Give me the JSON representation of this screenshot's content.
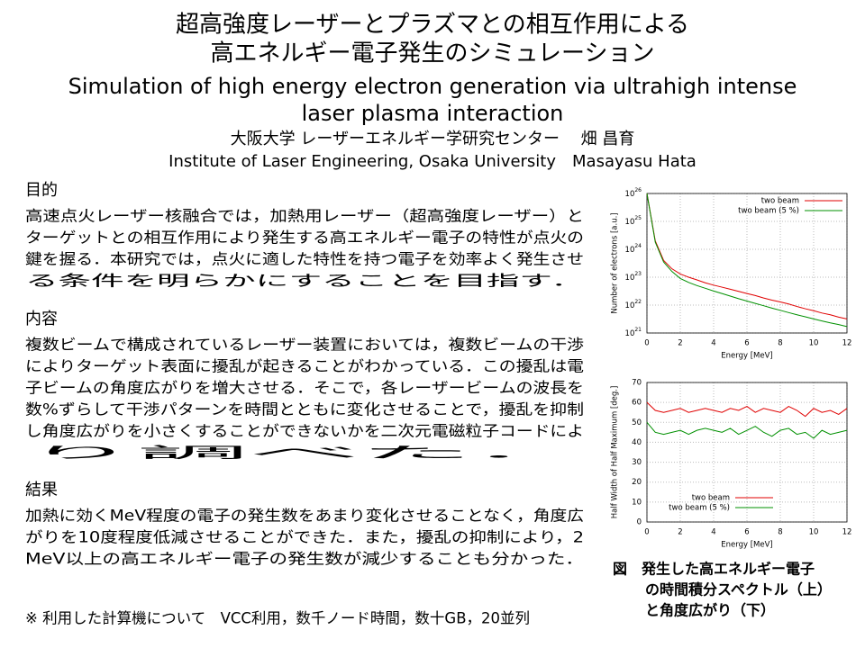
{
  "header": {
    "title_lines": [
      "超高強度レーザーとプラズマとの相互作用による",
      "高エネルギー電子発生のシミュレーション"
    ],
    "title_en_lines": [
      "Simulation of high energy electron generation via ultrahigh intense",
      "laser plasma interaction"
    ],
    "author_ja": "大阪大学 レーザーエネルギー学研究センター　 畑 昌育",
    "author_en": "Institute of Laser Engineering, Osaka University　Masayasu Hata"
  },
  "sections": [
    {
      "heading": "目的",
      "lines": [
        "高速点火レーザー核融合では，加熱用レーザー（超高強度レーザー）と",
        "ターゲットとの相互作用により発生する高エネルギー電子の特性が点火の",
        "鍵を握る．本研究では，点火に適した特性を持つ電子を効率よく発生させ",
        "る条件を明らかにすることを目指す．"
      ]
    },
    {
      "heading": "内容",
      "lines": [
        "複数ビームで構成されているレーザー装置においては，複数ビームの干渉",
        "によりターゲット表面に擾乱が起きることがわかっている．この擾乱は電",
        "子ビームの角度広がりを増大させる．そこで，各レーザービームの波長を",
        "数%ずらして干渉パターンを時間とともに変化させることで，擾乱を抑制",
        "し角度広がりを小さくすることができないかを二次元電磁粒子コードによ",
        "り調べた．"
      ]
    },
    {
      "heading": "結果",
      "lines": [
        "加熱に効くMeV程度の電子の発生数をあまり変化させることなく，角度広",
        "がりを10度程度低減させることができた．また，擾乱の抑制により，2",
        "MeV以上の高エネルギー電子の発生数が減少することも分かった．"
      ]
    }
  ],
  "footnote": "※ 利用した計算機について　VCC利用，数千ノード時間，数十GB，20並列",
  "figure": {
    "caption_lines": [
      "図　発生した高エネルギー電子",
      "の時間積分スペクトル（上）",
      "と角度広がり（下）"
    ],
    "charts": [
      {
        "type": "line",
        "x_label": "Energy [MeV]",
        "y_label": "Number of electrons [a.u.]",
        "log_y": true,
        "grid": true,
        "legend": "upper right",
        "x": [
          0,
          0.5,
          1,
          1.5,
          2,
          2.5,
          3,
          3.5,
          4,
          4.5,
          5,
          5.5,
          6,
          6.5,
          7,
          7.5,
          8,
          8.5,
          9,
          9.5,
          10,
          10.5,
          11,
          11.5,
          12
        ],
        "xlim": [
          0,
          12
        ],
        "xticks": [
          0,
          2,
          4,
          6,
          8,
          10,
          12
        ],
        "ylim": [
          1e+21,
          1e+26
        ],
        "yticks": [
          {
            "value": 1e+21,
            "label": "10",
            "exponent": "21"
          },
          {
            "value": 1e+22,
            "label": "10",
            "exponent": "22"
          },
          {
            "value": 1e+23,
            "label": "10",
            "exponent": "23"
          },
          {
            "value": 1e+24,
            "label": "10",
            "exponent": "24"
          },
          {
            "value": 1e+25,
            "label": "10",
            "exponent": "25"
          },
          {
            "value": 1e+26,
            "label": "10",
            "exponent": "26"
          }
        ],
        "series": [
          {
            "name": "two beam",
            "color": "#e00000",
            "values": [
              1e+26,
              2e+24,
              4e+23,
              2e+23,
              1.3e+23,
              1e+23,
              8e+22,
              6.3e+22,
              5.2e+22,
              4.4e+22,
              3.7e+22,
              3.1e+22,
              2.6e+22,
              2.2e+22,
              1.8e+22,
              1.5e+22,
              1.3e+22,
              1.1e+22,
              8.9e+21,
              7.4e+21,
              6.3e+21,
              5.2e+21,
              4.5e+21,
              3.7e+21,
              3.2e+21
            ]
          },
          {
            "name": "two beam (5 %)",
            "color": "#009000",
            "values": [
              1e+26,
              1.8e+24,
              3.5e+23,
              1.6e+23,
              9e+22,
              6.5e+22,
              5e+22,
              4e+22,
              3.2e+22,
              2.6e+22,
              2.1e+22,
              1.7e+22,
              1.4e+22,
              1.15e+22,
              9.5e+21,
              7.8e+21,
              6.5e+21,
              5.4e+21,
              4.5e+21,
              3.8e+21,
              3.2e+21,
              2.7e+21,
              2.3e+21,
              2e+21,
              1.7e+21
            ]
          }
        ]
      },
      {
        "type": "line",
        "x_label": "Energy [MeV]",
        "y_label": "Half Width of Half Maximum [deg.]",
        "log_y": false,
        "grid": true,
        "legend": "lower left",
        "x": [
          0,
          0.5,
          1,
          1.5,
          2,
          2.5,
          3,
          3.5,
          4,
          4.5,
          5,
          5.5,
          6,
          6.5,
          7,
          7.5,
          8,
          8.5,
          9,
          9.5,
          10,
          10.5,
          11,
          11.5,
          12
        ],
        "xlim": [
          0,
          12
        ],
        "xticks": [
          0,
          2,
          4,
          6,
          8,
          10,
          12
        ],
        "ylim": [
          0,
          70
        ],
        "yticks": [
          0,
          10,
          20,
          30,
          40,
          50,
          60,
          70
        ],
        "series": [
          {
            "name": "two beam",
            "color": "#e00000",
            "values": [
              60,
              56,
              55,
              56,
              57,
              55,
              56,
              57,
              56,
              55,
              57,
              56,
              58,
              55,
              57,
              56,
              55,
              58,
              56,
              53,
              57,
              55,
              56,
              54,
              57
            ]
          },
          {
            "name": "two beam (5 %)",
            "color": "#009000",
            "values": [
              50,
              45,
              44,
              45,
              46,
              44,
              46,
              47,
              46,
              45,
              47,
              44,
              46,
              48,
              45,
              43,
              46,
              47,
              44,
              45,
              42,
              46,
              44,
              45,
              46
            ]
          }
        ]
      }
    ]
  }
}
